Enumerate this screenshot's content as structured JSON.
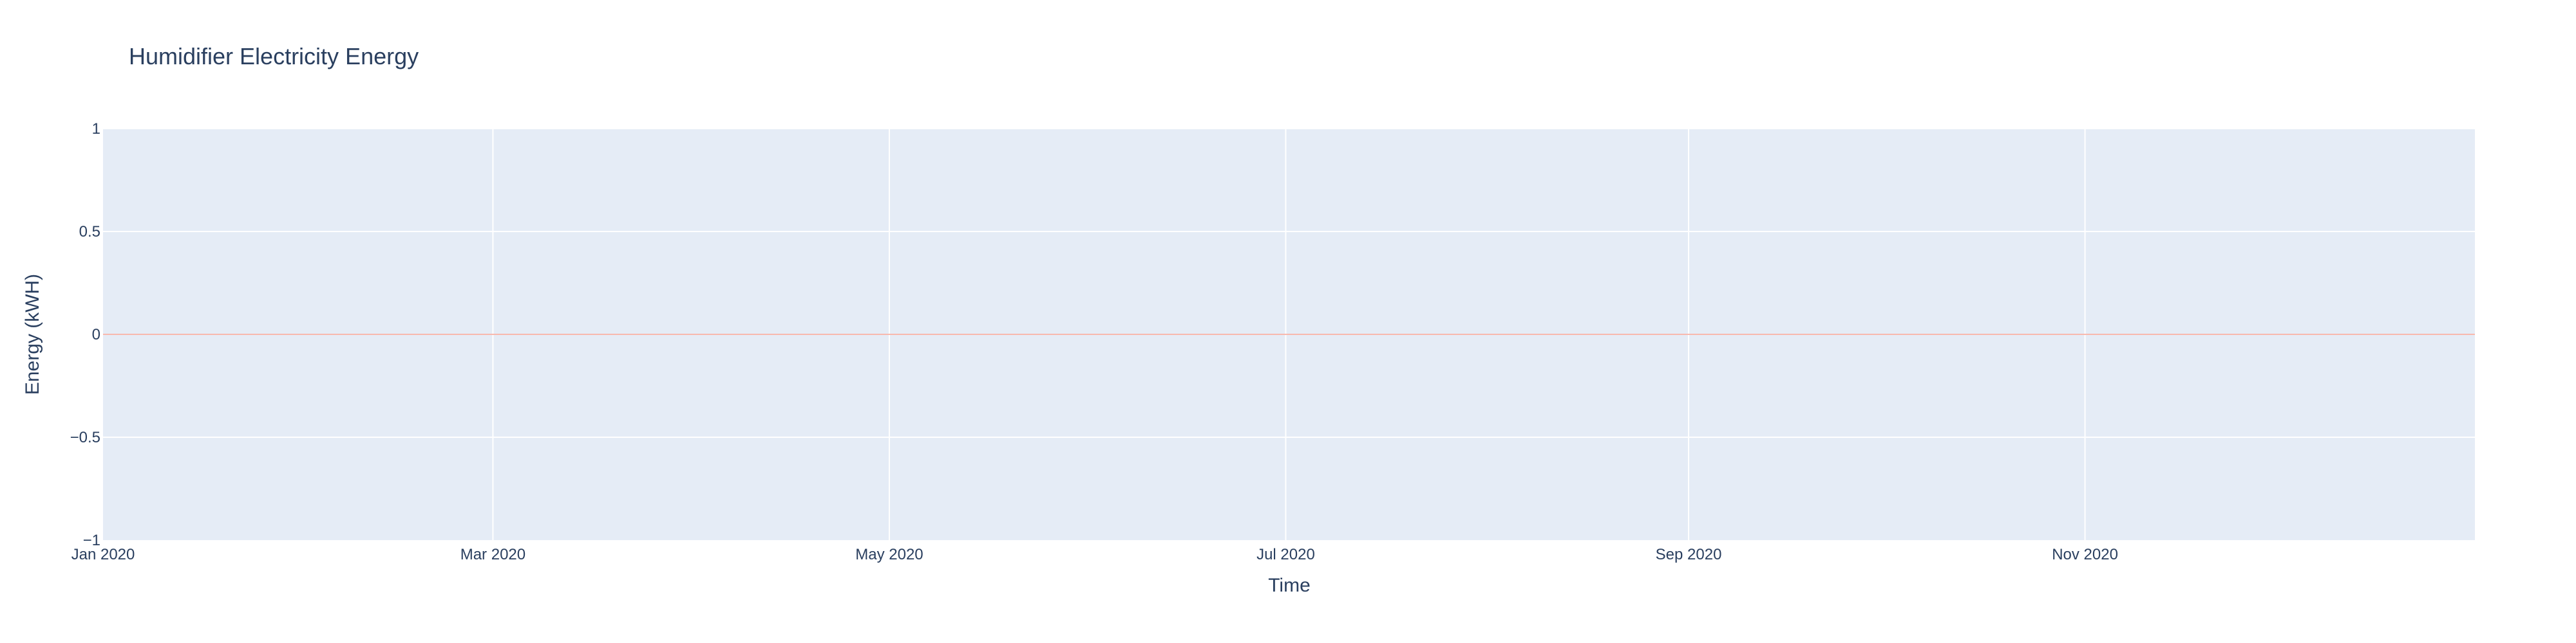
{
  "chart_data": {
    "type": "line",
    "title": "Humidifier Electricity Energy",
    "xlabel": "Time",
    "ylabel": "Energy (kWH)",
    "x_axis_type": "date",
    "xlim": [
      "2020-01-01",
      "2020-12-31"
    ],
    "x_ticks": [
      {
        "date": "2020-01-01",
        "label": "Jan 2020"
      },
      {
        "date": "2020-03-01",
        "label": "Mar 2020"
      },
      {
        "date": "2020-05-01",
        "label": "May 2020"
      },
      {
        "date": "2020-07-01",
        "label": "Jul 2020"
      },
      {
        "date": "2020-09-01",
        "label": "Sep 2020"
      },
      {
        "date": "2020-11-01",
        "label": "Nov 2020"
      }
    ],
    "ylim": [
      -1,
      1
    ],
    "y_ticks": [
      {
        "value": 1,
        "label": "1"
      },
      {
        "value": 0.5,
        "label": "0.5"
      },
      {
        "value": 0,
        "label": "0"
      },
      {
        "value": -0.5,
        "label": "−0.5"
      },
      {
        "value": -1,
        "label": "−1"
      }
    ],
    "grid": true,
    "legend": "none",
    "series": [
      {
        "color": "#ef553b",
        "x": [
          "2020-01-01",
          "2020-12-31"
        ],
        "y": [
          0,
          0
        ]
      }
    ]
  },
  "colors": {
    "plot_background": "#e5ecf6",
    "grid": "#ffffff",
    "text": "#2a3f5f"
  }
}
